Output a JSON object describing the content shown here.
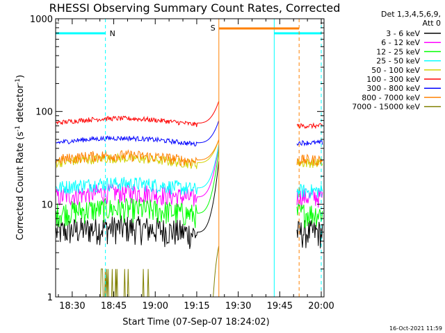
{
  "chart_data": {
    "type": "line",
    "title": "RHESSI Observing Summary Count Rates, Corrected",
    "xlabel": "Start Time (07-Sep-07 18:24:02)",
    "ylabel_main": "Corrected Count Rate (s",
    "ylabel_sup1": "-1",
    "ylabel_mid": " detector",
    "ylabel_sup2": "-1",
    "ylabel_end": ")",
    "y_scale": "log",
    "ylim": [
      1,
      1000
    ],
    "xlim": [
      "18:24",
      "20:01"
    ],
    "x_tick_labels": [
      "18:30",
      "18:45",
      "19:00",
      "19:15",
      "19:30",
      "19:45",
      "20:00"
    ],
    "y_tick_labels": [
      "1",
      "10",
      "100",
      "1000"
    ],
    "legend_header": [
      "Det 1,3,4,5,6,9,",
      "Att 0"
    ],
    "series": [
      {
        "name": "3 - 6 keV",
        "color": "#000000",
        "level_pre": 5.0,
        "level_post": 5.0
      },
      {
        "name": "6 - 12 keV",
        "color": "#ff00ff",
        "level_pre": 12,
        "level_post": 12
      },
      {
        "name": "12 - 25 keV",
        "color": "#00ff00",
        "level_pre": 8,
        "level_post": 8
      },
      {
        "name": "25 - 50 keV",
        "color": "#00ffff",
        "level_pre": 15,
        "level_post": 14
      },
      {
        "name": "50 - 100 keV",
        "color": "#d2d200",
        "level_pre": 28,
        "level_post": 28
      },
      {
        "name": "100 - 300 keV",
        "color": "#ff0000",
        "level_pre": 75,
        "level_post": 70
      },
      {
        "name": "300 - 800 keV",
        "color": "#0000ff",
        "level_pre": 46,
        "level_post": 46
      },
      {
        "name": "800 - 7000 keV",
        "color": "#ff8000",
        "level_pre": 30,
        "level_post": 30
      },
      {
        "name": "7000 - 15000 keV",
        "color": "#808000",
        "level_pre": 1,
        "level_post": 1
      }
    ],
    "annotations": {
      "night_label": "N",
      "saa_label": "S",
      "night_periods": [
        [
          "18:24",
          "18:42"
        ],
        [
          "19:43",
          "20:00"
        ]
      ],
      "saa_periods": [
        [
          "19:23",
          "19:52"
        ]
      ]
    },
    "timestamp": "16-Oct-2021 11:59"
  }
}
